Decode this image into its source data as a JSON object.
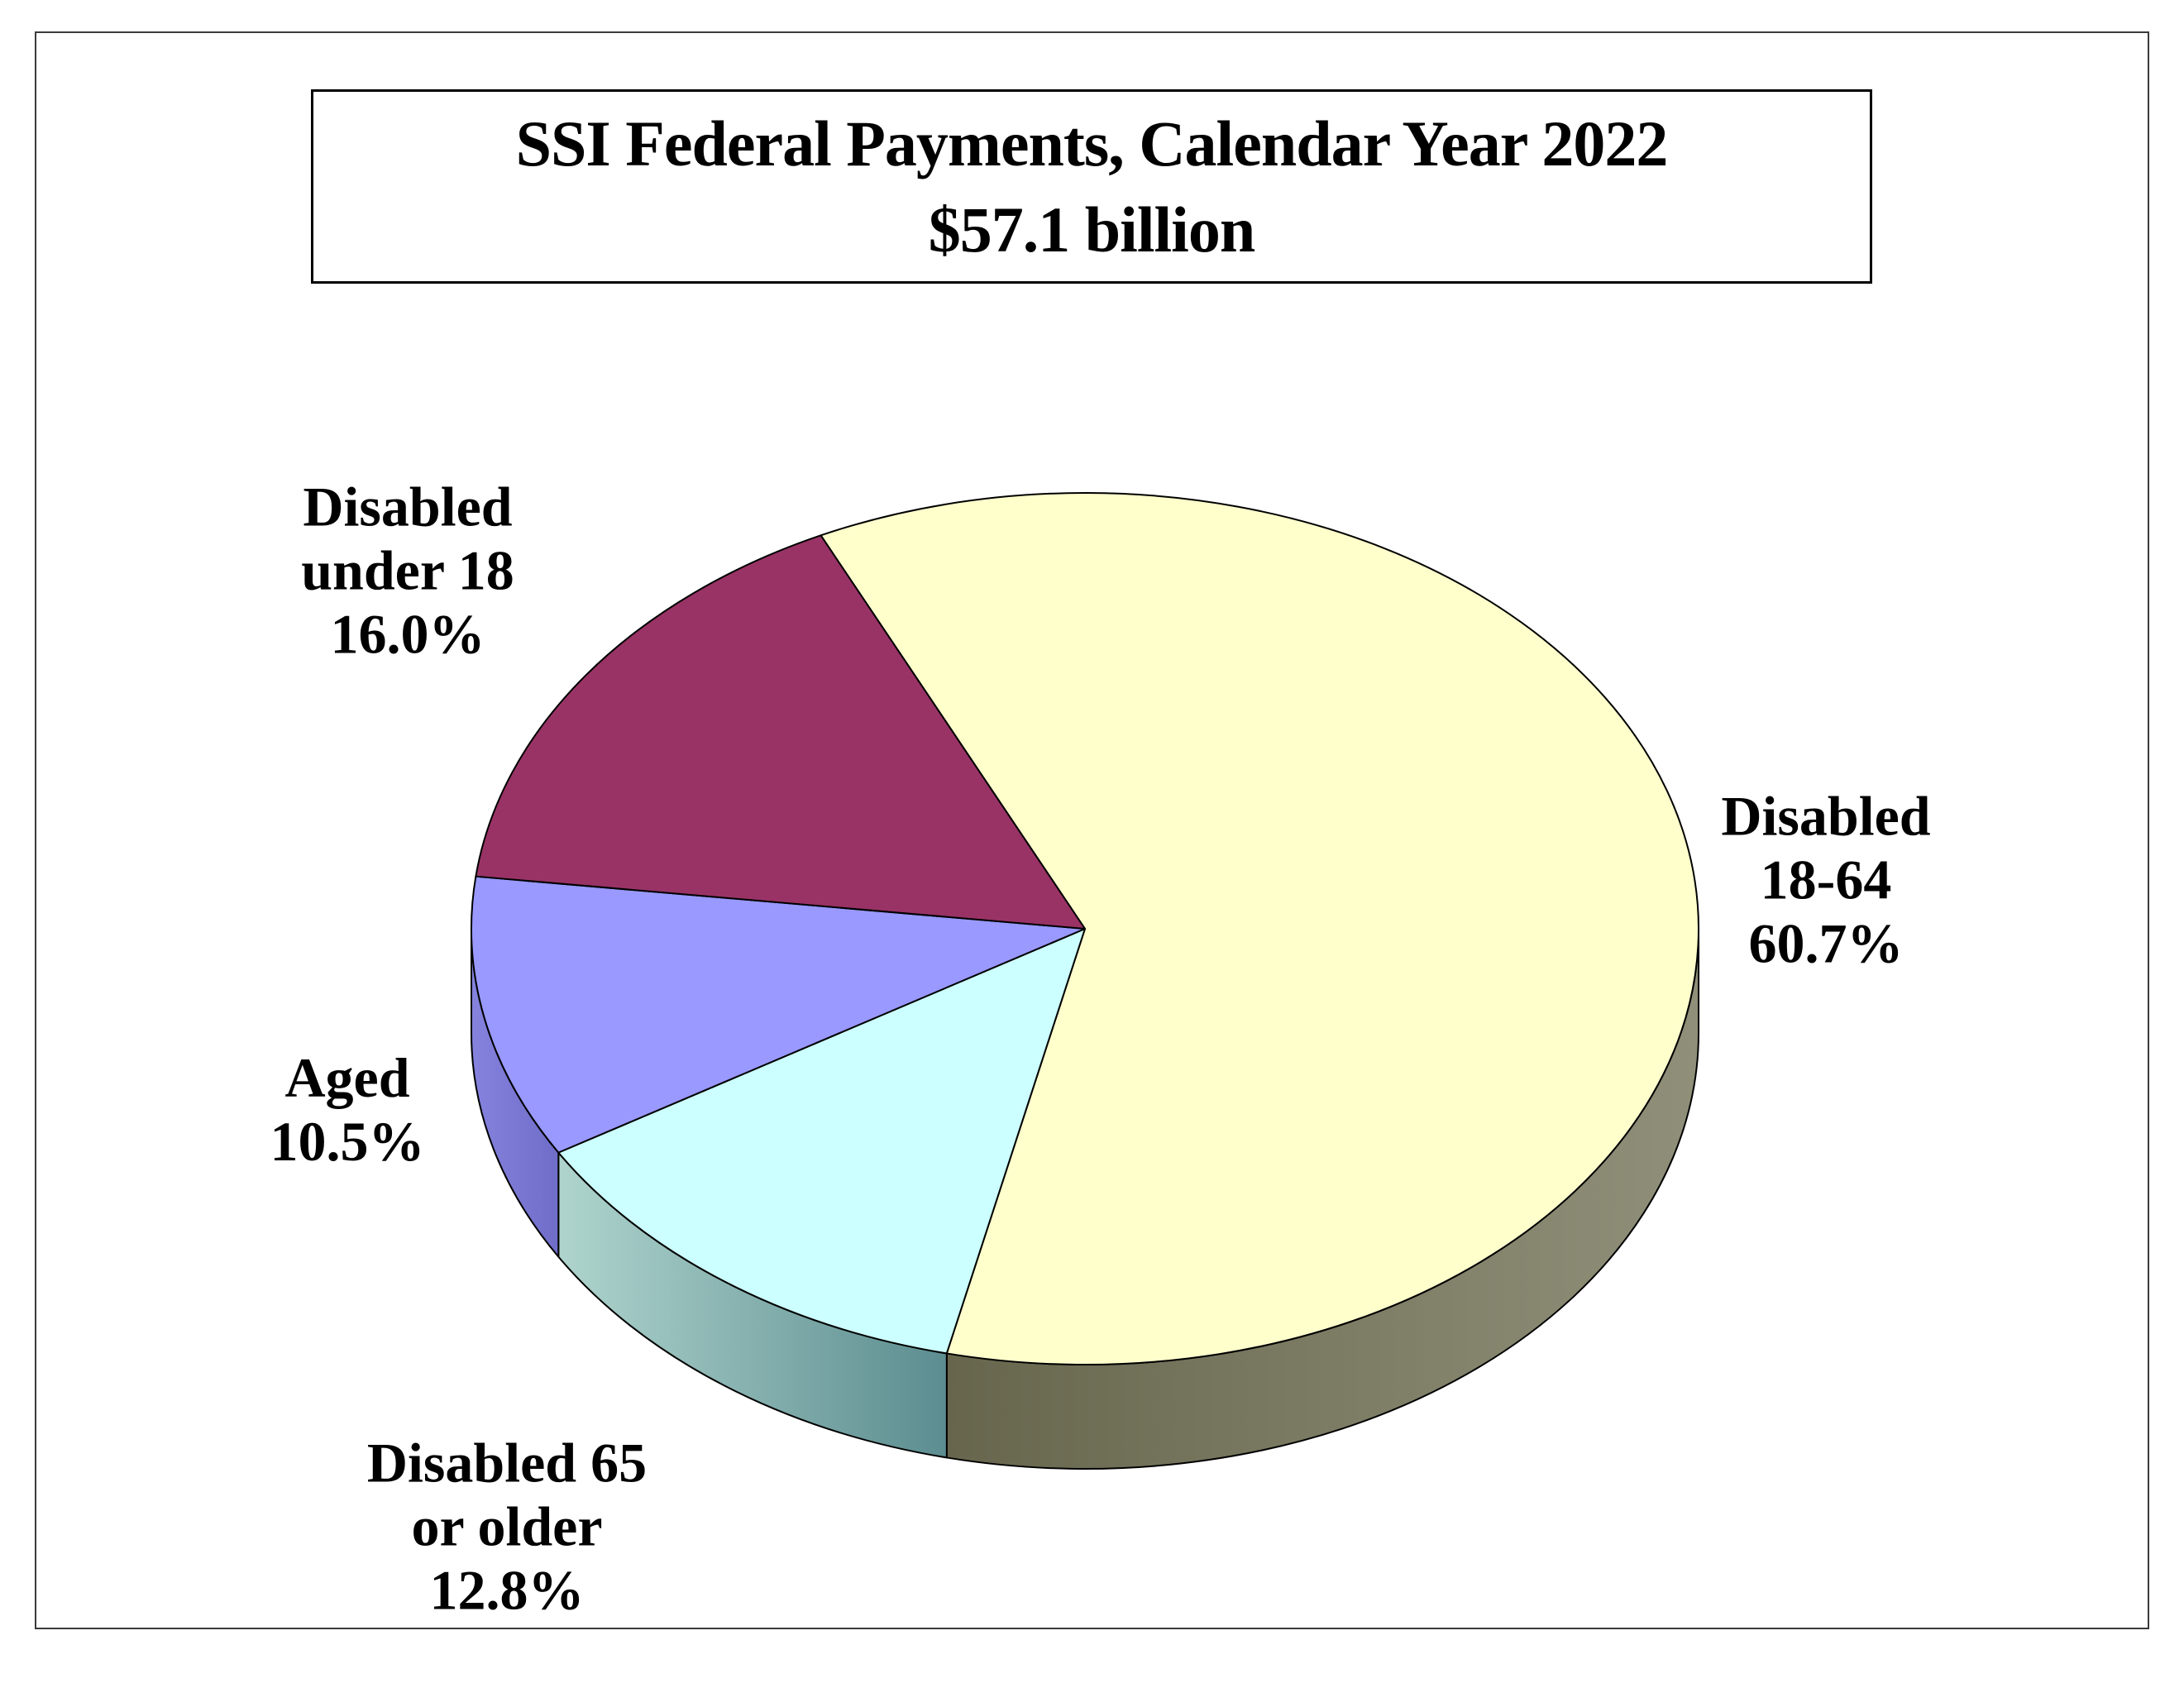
{
  "title": {
    "line1": "SSI Federal Payments, Calendar Year 2022",
    "line2": "$57.1 billion"
  },
  "chart_data": {
    "type": "pie",
    "style": "3d",
    "title": "SSI Federal Payments, Calendar Year 2022",
    "subtitle": "$57.1 billion",
    "total_label": "$57.1 billion",
    "start_angle_deg": 115.5,
    "direction": "clockwise",
    "outline_color": "#000000",
    "slices": [
      {
        "label": "Disabled 18-64",
        "pct": 60.7,
        "value_label": "60.7%",
        "color": "#FFFFCC",
        "side_light": "#90907A",
        "side_dark": "#67664D",
        "label_lines": [
          "Disabled",
          "18-64",
          "60.7%"
        ]
      },
      {
        "label": "Disabled 65 or older",
        "pct": 12.8,
        "value_label": "12.8%",
        "color": "#CCFFFF",
        "side_light": "#AFD4CD",
        "side_dark": "#5C8D90",
        "label_lines": [
          "Disabled 65",
          "or older",
          "12.8%"
        ]
      },
      {
        "label": "Aged",
        "pct": 10.5,
        "value_label": "10.5%",
        "color": "#9999FF",
        "side_light": "#8583DE",
        "side_dark": "#6F6DC8",
        "label_lines": [
          "Aged",
          "10.5%"
        ]
      },
      {
        "label": "Disabled under 18",
        "pct": 16.0,
        "value_label": "16.0%",
        "color": "#993366",
        "side_light": "#7A2A52",
        "side_dark": "#5C1F3D",
        "label_lines": [
          "Disabled",
          "under 18",
          "16.0%"
        ]
      }
    ]
  }
}
